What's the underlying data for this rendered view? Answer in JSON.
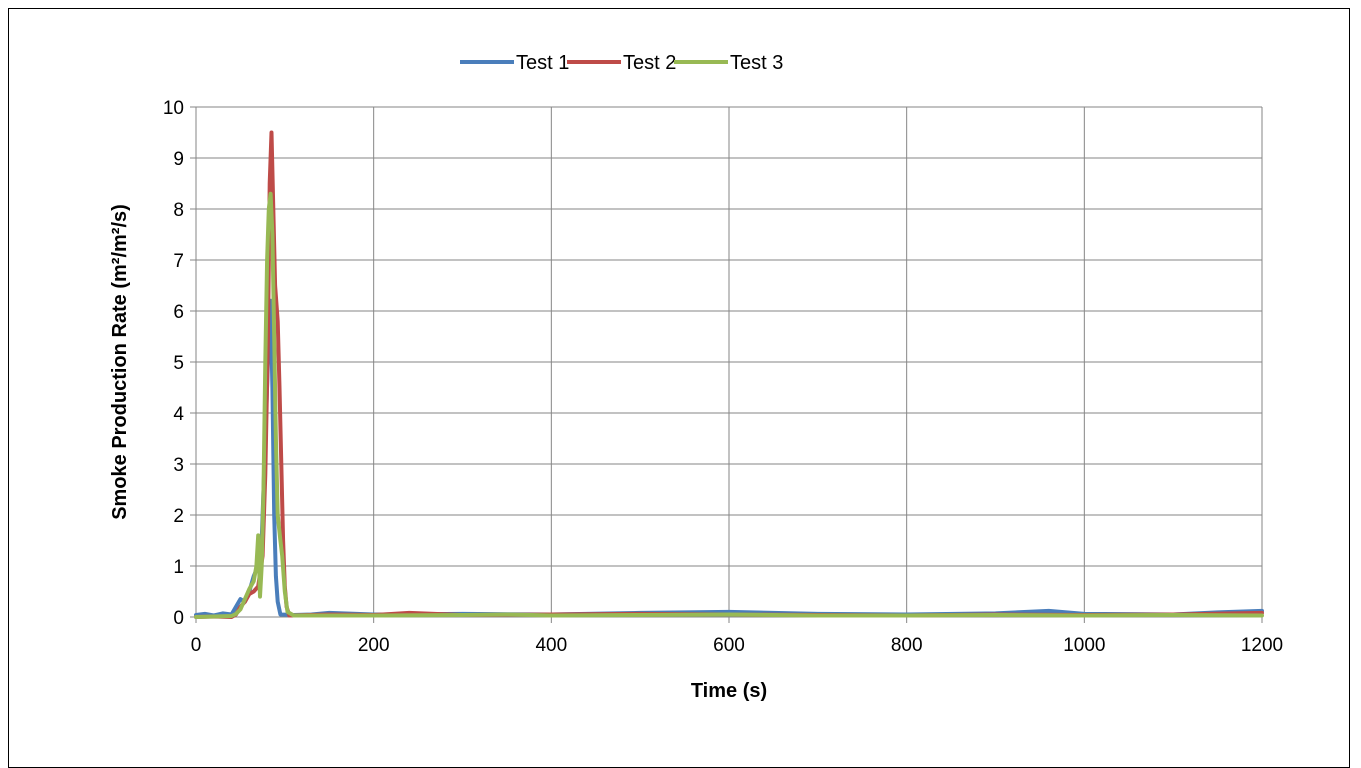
{
  "chart_data": {
    "type": "line",
    "title": "",
    "xlabel": "Time (s)",
    "ylabel": "Smoke Production Rate (m²/m²/s)",
    "xlim": [
      0,
      1200
    ],
    "ylim": [
      0,
      10
    ],
    "x_ticks": [
      "0",
      "200",
      "400",
      "600",
      "800",
      "1000",
      "1200"
    ],
    "y_ticks": [
      "0",
      "1",
      "2",
      "3",
      "4",
      "5",
      "6",
      "7",
      "8",
      "9",
      "10"
    ],
    "grid": true,
    "legend_position": "top",
    "series": [
      {
        "name": "Test 1",
        "color": "#4a7ebb",
        "points": [
          [
            0,
            0.04
          ],
          [
            10,
            0.06
          ],
          [
            20,
            0.03
          ],
          [
            30,
            0.07
          ],
          [
            40,
            0.05
          ],
          [
            50,
            0.35
          ],
          [
            55,
            0.3
          ],
          [
            60,
            0.5
          ],
          [
            65,
            0.8
          ],
          [
            70,
            1.0
          ],
          [
            74,
            1.5
          ],
          [
            78,
            3.5
          ],
          [
            82,
            5.5
          ],
          [
            84,
            6.2
          ],
          [
            86,
            4.5
          ],
          [
            88,
            2.0
          ],
          [
            90,
            0.8
          ],
          [
            92,
            0.3
          ],
          [
            95,
            0.05
          ],
          [
            110,
            0.04
          ],
          [
            130,
            0.05
          ],
          [
            150,
            0.08
          ],
          [
            200,
            0.05
          ],
          [
            300,
            0.06
          ],
          [
            400,
            0.05
          ],
          [
            500,
            0.08
          ],
          [
            600,
            0.1
          ],
          [
            700,
            0.06
          ],
          [
            800,
            0.05
          ],
          [
            900,
            0.07
          ],
          [
            960,
            0.12
          ],
          [
            1000,
            0.06
          ],
          [
            1100,
            0.05
          ],
          [
            1150,
            0.09
          ],
          [
            1200,
            0.12
          ]
        ]
      },
      {
        "name": "Test 2",
        "color": "#be4b48",
        "points": [
          [
            0,
            0.0
          ],
          [
            20,
            0.01
          ],
          [
            40,
            0.0
          ],
          [
            45,
            0.05
          ],
          [
            50,
            0.2
          ],
          [
            55,
            0.3
          ],
          [
            60,
            0.45
          ],
          [
            65,
            0.5
          ],
          [
            70,
            0.6
          ],
          [
            75,
            1.2
          ],
          [
            78,
            2.8
          ],
          [
            81,
            5.5
          ],
          [
            83,
            8.5
          ],
          [
            85,
            9.5
          ],
          [
            87,
            8.0
          ],
          [
            89,
            6.5
          ],
          [
            92,
            5.8
          ],
          [
            94,
            4.5
          ],
          [
            96,
            3.0
          ],
          [
            98,
            1.5
          ],
          [
            100,
            0.6
          ],
          [
            102,
            0.2
          ],
          [
            105,
            0.03
          ],
          [
            150,
            0.05
          ],
          [
            200,
            0.04
          ],
          [
            240,
            0.08
          ],
          [
            300,
            0.04
          ],
          [
            400,
            0.05
          ],
          [
            500,
            0.06
          ],
          [
            600,
            0.05
          ],
          [
            700,
            0.04
          ],
          [
            800,
            0.03
          ],
          [
            900,
            0.05
          ],
          [
            1000,
            0.04
          ],
          [
            1100,
            0.05
          ],
          [
            1200,
            0.08
          ]
        ]
      },
      {
        "name": "Test 3",
        "color": "#98b954",
        "points": [
          [
            0,
            0.0
          ],
          [
            20,
            0.01
          ],
          [
            40,
            0.02
          ],
          [
            45,
            0.06
          ],
          [
            50,
            0.15
          ],
          [
            55,
            0.35
          ],
          [
            60,
            0.55
          ],
          [
            65,
            0.7
          ],
          [
            68,
            1.0
          ],
          [
            70,
            1.6
          ],
          [
            72,
            0.4
          ],
          [
            74,
            1.0
          ],
          [
            76,
            2.5
          ],
          [
            78,
            5.0
          ],
          [
            80,
            7.0
          ],
          [
            82,
            8.0
          ],
          [
            84,
            8.3
          ],
          [
            86,
            7.5
          ],
          [
            88,
            5.5
          ],
          [
            90,
            3.5
          ],
          [
            92,
            2.0
          ],
          [
            95,
            1.5
          ],
          [
            97,
            1.2
          ],
          [
            100,
            0.5
          ],
          [
            103,
            0.1
          ],
          [
            110,
            0.03
          ],
          [
            200,
            0.03
          ],
          [
            300,
            0.04
          ],
          [
            350,
            0.05
          ],
          [
            400,
            0.03
          ],
          [
            500,
            0.04
          ],
          [
            600,
            0.05
          ],
          [
            700,
            0.03
          ],
          [
            800,
            0.03
          ],
          [
            900,
            0.04
          ],
          [
            1000,
            0.03
          ],
          [
            1100,
            0.04
          ],
          [
            1200,
            0.03
          ]
        ]
      }
    ]
  }
}
